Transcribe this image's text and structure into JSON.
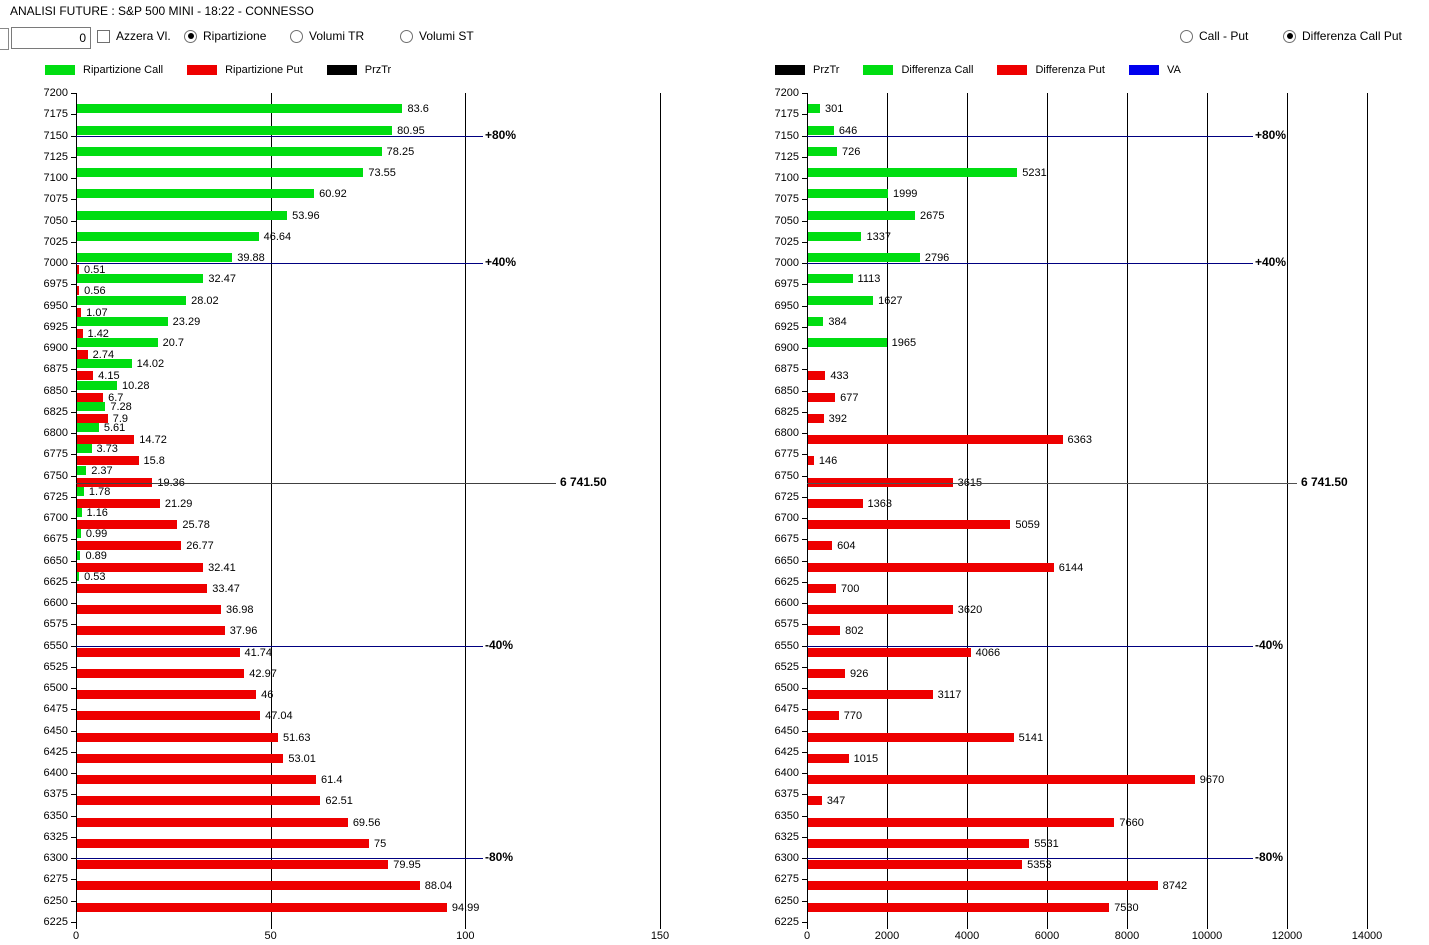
{
  "window_title": "ANALISI FUTURE : S&P 500 MINI - 18:22 - CONNESSO",
  "toolbar": {
    "counter_value": "0",
    "azzera_label": "Azzera Vl.",
    "ripartizione_label": "Ripartizione",
    "volumi_tr_label": "Volumi TR",
    "volumi_st_label": "Volumi ST",
    "call_put_label": "Call - Put",
    "differenza_label": "Differenza Call Put"
  },
  "colors": {
    "call_green": "#00dd11",
    "put_red": "#ee0000",
    "prztr_black": "#000000",
    "va_blue": "#0000ee",
    "ref_blue": "#000080",
    "price_line": "#505050"
  },
  "legend_left": {
    "items": [
      {
        "label": "Ripartizione Call",
        "color": "#00dd11"
      },
      {
        "label": "Ripartizione Put",
        "color": "#ee0000"
      },
      {
        "label": "PrzTr",
        "color": "#000000"
      }
    ]
  },
  "legend_right": {
    "items": [
      {
        "label": "PrzTr",
        "color": "#000000"
      },
      {
        "label": "Differenza Call",
        "color": "#00dd11"
      },
      {
        "label": "Differenza Put",
        "color": "#ee0000"
      },
      {
        "label": "VA",
        "color": "#0000ee"
      }
    ]
  },
  "chart_data": [
    {
      "type": "bar",
      "title": "Ripartizione Call / Put",
      "orientation": "horizontal",
      "xlim": [
        0,
        160
      ],
      "x_ticks": [
        0,
        50,
        100,
        150
      ],
      "ylim": [
        6225,
        7200
      ],
      "y_ticks": [
        7200,
        7175,
        7150,
        7125,
        7100,
        7075,
        7050,
        7025,
        7000,
        6975,
        6950,
        6925,
        6900,
        6875,
        6850,
        6825,
        6800,
        6775,
        6750,
        6725,
        6700,
        6675,
        6650,
        6625,
        6600,
        6575,
        6550,
        6525,
        6500,
        6475,
        6450,
        6425,
        6400,
        6375,
        6350,
        6325,
        6300,
        6275,
        6250,
        6225
      ],
      "grid": true,
      "series": [
        {
          "name": "Ripartizione Call",
          "color": "#00dd11",
          "points": [
            [
              7175,
              83.6
            ],
            [
              7150,
              80.95
            ],
            [
              7125,
              78.25
            ],
            [
              7100,
              73.55
            ],
            [
              7075,
              60.92
            ],
            [
              7050,
              53.96
            ],
            [
              7025,
              46.64
            ],
            [
              7000,
              39.88
            ],
            [
              6975,
              32.47
            ],
            [
              6950,
              28.02
            ],
            [
              6925,
              23.29
            ],
            [
              6900,
              20.7
            ],
            [
              6875,
              14.02
            ],
            [
              6850,
              10.28
            ],
            [
              6825,
              7.28
            ],
            [
              6800,
              5.61
            ],
            [
              6775,
              3.73
            ],
            [
              6750,
              2.37
            ],
            [
              6725,
              1.78
            ],
            [
              6700,
              1.16
            ],
            [
              6675,
              0.99
            ],
            [
              6650,
              0.89
            ],
            [
              6625,
              0.53
            ]
          ]
        },
        {
          "name": "Ripartizione Put",
          "color": "#ee0000",
          "points": [
            [
              7000,
              0.51
            ],
            [
              6975,
              0.56
            ],
            [
              6950,
              1.07
            ],
            [
              6925,
              1.42
            ],
            [
              6900,
              2.74
            ],
            [
              6875,
              4.15
            ],
            [
              6850,
              6.7
            ],
            [
              6825,
              7.9
            ],
            [
              6800,
              14.72
            ],
            [
              6775,
              15.8
            ],
            [
              6750,
              19.36
            ],
            [
              6725,
              21.29
            ],
            [
              6700,
              25.78
            ],
            [
              6675,
              26.77
            ],
            [
              6650,
              32.41
            ],
            [
              6625,
              33.47
            ],
            [
              6600,
              36.98
            ],
            [
              6575,
              37.96
            ],
            [
              6550,
              41.74
            ],
            [
              6525,
              42.97
            ],
            [
              6500,
              46
            ],
            [
              6475,
              47.04
            ],
            [
              6450,
              51.63
            ],
            [
              6425,
              53.01
            ],
            [
              6400,
              61.4
            ],
            [
              6375,
              62.51
            ],
            [
              6350,
              69.56
            ],
            [
              6325,
              75
            ],
            [
              6300,
              79.95
            ],
            [
              6275,
              88.04
            ],
            [
              6250,
              94.99
            ]
          ]
        }
      ],
      "reference_lines": [
        {
          "y": 7150,
          "label": "+80%",
          "color": "#000080",
          "kind": "pct"
        },
        {
          "y": 7000,
          "label": "+40%",
          "color": "#000080",
          "kind": "pct"
        },
        {
          "y": 6550,
          "label": "-40%",
          "color": "#000080",
          "kind": "pct"
        },
        {
          "y": 6300,
          "label": "-80%",
          "color": "#000080",
          "kind": "pct"
        },
        {
          "y": 6741.5,
          "label": "6 741.50",
          "color": "#404040",
          "kind": "price"
        }
      ]
    },
    {
      "type": "bar",
      "title": "Differenza Call Put",
      "orientation": "horizontal",
      "xlim": [
        0,
        15300
      ],
      "x_ticks": [
        0,
        2000,
        4000,
        6000,
        8000,
        10000,
        12000,
        14000
      ],
      "ylim": [
        6225,
        7200
      ],
      "y_ticks": [
        7200,
        7175,
        7150,
        7125,
        7100,
        7075,
        7050,
        7025,
        7000,
        6975,
        6950,
        6925,
        6900,
        6875,
        6850,
        6825,
        6800,
        6775,
        6750,
        6725,
        6700,
        6675,
        6650,
        6625,
        6600,
        6575,
        6550,
        6525,
        6500,
        6475,
        6450,
        6425,
        6400,
        6375,
        6350,
        6325,
        6300,
        6275,
        6250,
        6225
      ],
      "grid": true,
      "series": [
        {
          "name": "Differenza Call",
          "color": "#00dd11",
          "points": [
            [
              7175,
              301
            ],
            [
              7150,
              646
            ],
            [
              7125,
              726
            ],
            [
              7100,
              5231
            ],
            [
              7075,
              1999
            ],
            [
              7050,
              2675
            ],
            [
              7025,
              1337
            ],
            [
              7000,
              2796
            ],
            [
              6975,
              1113
            ],
            [
              6950,
              1627
            ],
            [
              6925,
              384
            ],
            [
              6900,
              1965
            ]
          ]
        },
        {
          "name": "Differenza Put",
          "color": "#ee0000",
          "points": [
            [
              6875,
              433
            ],
            [
              6850,
              677
            ],
            [
              6825,
              392
            ],
            [
              6800,
              6363
            ],
            [
              6775,
              146
            ],
            [
              6750,
              3615
            ],
            [
              6725,
              1363
            ],
            [
              6700,
              5059
            ],
            [
              6675,
              604
            ],
            [
              6650,
              6144
            ],
            [
              6625,
              700
            ],
            [
              6600,
              3620
            ],
            [
              6575,
              802
            ],
            [
              6550,
              4066
            ],
            [
              6525,
              926
            ],
            [
              6500,
              3117
            ],
            [
              6475,
              770
            ],
            [
              6450,
              5141
            ],
            [
              6425,
              1015
            ],
            [
              6400,
              9670
            ],
            [
              6375,
              347
            ],
            [
              6350,
              7660
            ],
            [
              6325,
              5531
            ],
            [
              6300,
              5353
            ],
            [
              6275,
              8742
            ],
            [
              6250,
              7530
            ]
          ]
        }
      ],
      "reference_lines": [
        {
          "y": 7150,
          "label": "+80%",
          "color": "#000080",
          "kind": "pct"
        },
        {
          "y": 7000,
          "label": "+40%",
          "color": "#000080",
          "kind": "pct"
        },
        {
          "y": 6550,
          "label": "-40%",
          "color": "#000080",
          "kind": "pct"
        },
        {
          "y": 6300,
          "label": "-80%",
          "color": "#000080",
          "kind": "pct"
        },
        {
          "y": 6741.5,
          "label": "6 741.50",
          "color": "#505050",
          "kind": "price"
        }
      ]
    }
  ]
}
